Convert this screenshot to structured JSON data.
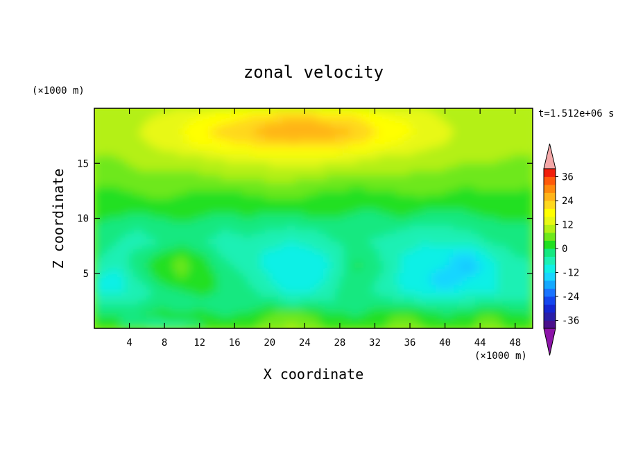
{
  "chart_data": {
    "type": "heatmap",
    "title": "zonal velocity",
    "xlabel": "X coordinate",
    "ylabel": "Z coordinate",
    "x_unit": "(×1000 m)",
    "y_unit": "(×1000 m)",
    "time_label": "t=1.512e+06 s",
    "xlim": [
      0,
      50
    ],
    "ylim": [
      0,
      20
    ],
    "x_ticks": [
      4,
      8,
      12,
      16,
      20,
      24,
      28,
      32,
      36,
      40,
      44,
      48
    ],
    "y_ticks": [
      5,
      10,
      15
    ],
    "colorbar": {
      "levels": [
        -40,
        -36,
        -32,
        -28,
        -24,
        -20,
        -16,
        -12,
        -8,
        -4,
        0,
        4,
        8,
        12,
        16,
        20,
        24,
        28,
        32,
        36,
        40
      ],
      "colors": [
        "#4a0f8c",
        "#2a1ea8",
        "#1426d2",
        "#1446ee",
        "#1a74ff",
        "#14a8ff",
        "#18d6ff",
        "#10f0e6",
        "#1cf0b4",
        "#14e880",
        "#20e020",
        "#6ee81a",
        "#b4f014",
        "#e8f814",
        "#ffff00",
        "#ffd81e",
        "#ffb418",
        "#ff8a0c",
        "#ff5a0a",
        "#f01e0a"
      ],
      "tick_labels": [
        "36",
        "24",
        "12",
        "0",
        "-12",
        "-24",
        "-36"
      ],
      "under_color": "#8c14a8",
      "over_color": "#f4a8a8"
    },
    "z_rows": [
      [
        8,
        9,
        10,
        11,
        12,
        14,
        15,
        16,
        17,
        18,
        17,
        16,
        16,
        14,
        13,
        12,
        11,
        10,
        9,
        9,
        8
      ],
      [
        9,
        10,
        11,
        13,
        15,
        17,
        19,
        21,
        23,
        24,
        24,
        22,
        21,
        18,
        16,
        14,
        12,
        10,
        10,
        9,
        9
      ],
      [
        10,
        11,
        12,
        14,
        16,
        20,
        22,
        24,
        26,
        27,
        28,
        26,
        24,
        20,
        18,
        15,
        13,
        11,
        10,
        10,
        10
      ],
      [
        9,
        10,
        11,
        13,
        15,
        17,
        19,
        20,
        22,
        23,
        22,
        21,
        20,
        17,
        15,
        13,
        12,
        10,
        10,
        9,
        9
      ],
      [
        8,
        8,
        9,
        10,
        11,
        12,
        13,
        14,
        14,
        15,
        15,
        14,
        13,
        12,
        12,
        11,
        10,
        9,
        9,
        8,
        8
      ],
      [
        6,
        7,
        8,
        8,
        9,
        9,
        10,
        10,
        11,
        11,
        11,
        10,
        10,
        10,
        9,
        8,
        8,
        7,
        7,
        7,
        6
      ],
      [
        5,
        5,
        6,
        6,
        5,
        6,
        7,
        7,
        8,
        8,
        7,
        6,
        5,
        6,
        7,
        6,
        5,
        5,
        6,
        6,
        5
      ],
      [
        3,
        3,
        4,
        5,
        4,
        3,
        3,
        4,
        5,
        5,
        4,
        3,
        3,
        3,
        4,
        5,
        4,
        3,
        3,
        3,
        3
      ],
      [
        2,
        2,
        2,
        3,
        2,
        1,
        1,
        2,
        1,
        2,
        3,
        2,
        1,
        1,
        2,
        1,
        1,
        1,
        2,
        2,
        2
      ],
      [
        1,
        0,
        -1,
        0,
        1,
        0,
        -1,
        0,
        -1,
        -1,
        0,
        0,
        -1,
        -1,
        0,
        -1,
        -2,
        -1,
        0,
        1,
        1
      ],
      [
        -2,
        -3,
        -4,
        -2,
        -1,
        -2,
        -4,
        -3,
        -4,
        -5,
        -4,
        -3,
        -2,
        -3,
        -4,
        -6,
        -5,
        -4,
        -3,
        -2,
        -2
      ],
      [
        -1,
        -4,
        -6,
        -4,
        -2,
        -4,
        -6,
        -5,
        -6,
        -8,
        -6,
        -4,
        -3,
        -5,
        -6,
        -8,
        -7,
        -6,
        -4,
        -3,
        -2
      ],
      [
        -3,
        -5,
        -3,
        1,
        4,
        0,
        -5,
        -7,
        -9,
        -11,
        -10,
        -6,
        -1,
        -4,
        -8,
        -9,
        -10,
        -14,
        -8,
        -4,
        -3
      ],
      [
        -5,
        -8,
        -2,
        3,
        5,
        2,
        -3,
        -6,
        -9,
        -12,
        -12,
        -7,
        1,
        -3,
        -8,
        -10,
        -12,
        -17,
        -10,
        -6,
        -5
      ],
      [
        -8,
        -10,
        -4,
        1,
        4,
        3,
        -2,
        -4,
        -8,
        -11,
        -11,
        -5,
        -1,
        -4,
        -9,
        -11,
        -16,
        -12,
        -9,
        -7,
        -7
      ],
      [
        -9,
        -9,
        -6,
        -3,
        0,
        1,
        -1,
        -3,
        -6,
        -9,
        -8,
        -4,
        -2,
        -5,
        -8,
        -10,
        -11,
        -9,
        -8,
        -8,
        -8
      ],
      [
        -4,
        -4,
        -4,
        -2,
        -3,
        -1,
        -3,
        -2,
        -1,
        -4,
        -3,
        -4,
        -2,
        -1,
        -3,
        -4,
        -5,
        -4,
        -3,
        -3,
        -3
      ],
      [
        0,
        0,
        0,
        2,
        2,
        1,
        0,
        1,
        4,
        7,
        4,
        1,
        0,
        2,
        5,
        3,
        0,
        2,
        5,
        2,
        0
      ],
      [
        2,
        1,
        -3,
        -9,
        -6,
        0,
        2,
        3,
        6,
        9,
        6,
        2,
        1,
        3,
        6,
        4,
        1,
        3,
        7,
        3,
        1
      ]
    ]
  }
}
